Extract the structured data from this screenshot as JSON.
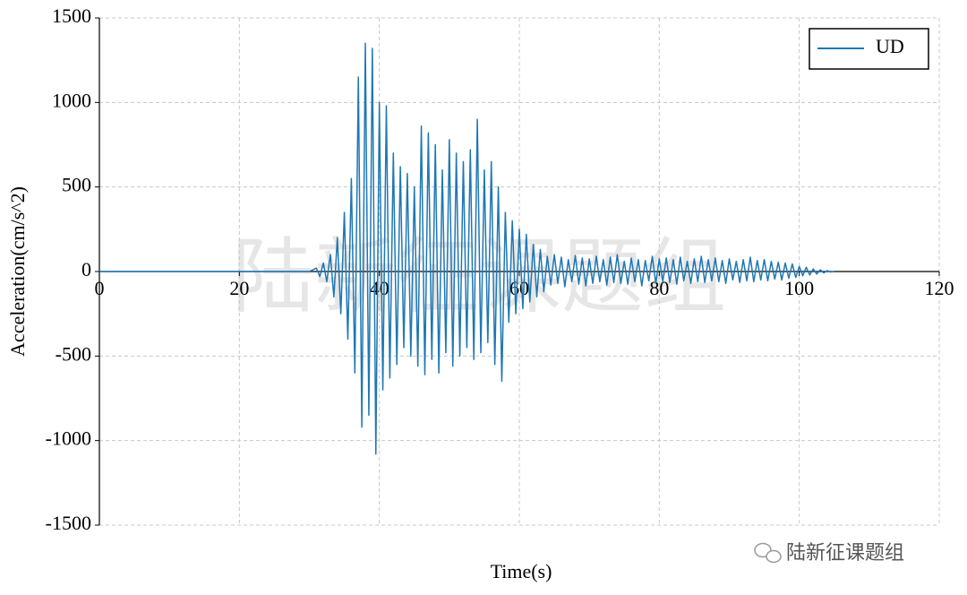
{
  "chart_data": {
    "type": "line",
    "xlabel": "Time(s)",
    "ylabel": "Acceleration(cm/s^2)",
    "x": [
      0,
      30,
      31,
      31.5,
      32,
      32.5,
      33,
      33.5,
      34,
      34.5,
      35,
      35.5,
      36,
      36.5,
      37,
      37.5,
      38,
      38.5,
      39,
      39.5,
      40,
      40.5,
      41,
      41.5,
      42,
      42.5,
      43,
      43.5,
      44,
      44.5,
      45,
      45.5,
      46,
      46.5,
      47,
      47.5,
      48,
      48.5,
      49,
      49.5,
      50,
      50.5,
      51,
      51.5,
      52,
      52.5,
      53,
      53.5,
      54,
      54.5,
      55,
      55.5,
      56,
      56.5,
      57,
      57.5,
      58,
      58.5,
      59,
      59.5,
      60,
      60.5,
      61,
      61.5,
      62,
      62.5,
      63,
      63.5,
      64,
      64.5,
      65,
      65.5,
      66,
      66.5,
      67,
      67.5,
      68,
      68.5,
      69,
      69.5,
      70,
      70.5,
      71,
      71.5,
      72,
      72.5,
      73,
      73.5,
      74,
      74.5,
      75,
      75.5,
      76,
      76.5,
      77,
      77.5,
      78,
      78.5,
      79,
      79.5,
      80,
      80.5,
      81,
      81.5,
      82,
      82.5,
      83,
      83.5,
      84,
      84.5,
      85,
      85.5,
      86,
      86.5,
      87,
      87.5,
      88,
      88.5,
      89,
      89.5,
      90,
      90.5,
      91,
      91.5,
      92,
      92.5,
      93,
      93.5,
      94,
      94.5,
      95,
      95.5,
      96,
      96.5,
      97,
      97.5,
      98,
      98.5,
      99,
      99.5,
      100,
      100.5,
      101,
      101.5,
      102,
      102.5,
      103,
      103.5,
      104,
      104.5,
      105
    ],
    "series": [
      {
        "name": "UD",
        "color": "#1f77b4",
        "values": [
          0,
          0,
          20,
          -30,
          50,
          -60,
          100,
          -150,
          200,
          -250,
          350,
          -400,
          550,
          -600,
          1150,
          -920,
          1350,
          -850,
          1320,
          -1080,
          1000,
          -700,
          980,
          -630,
          700,
          -550,
          620,
          -450,
          580,
          -500,
          500,
          -560,
          860,
          -610,
          820,
          -520,
          750,
          -600,
          600,
          -480,
          780,
          -560,
          700,
          -500,
          650,
          -450,
          720,
          -520,
          900,
          -480,
          600,
          -420,
          650,
          -550,
          500,
          -650,
          350,
          -300,
          300,
          -250,
          250,
          -220,
          220,
          -180,
          160,
          -150,
          130,
          -120,
          90,
          -80,
          100,
          -70,
          85,
          -90,
          70,
          -60,
          95,
          -75,
          80,
          -85,
          75,
          -70,
          90,
          -60,
          70,
          -80,
          85,
          -65,
          100,
          -70,
          60,
          -75,
          80,
          -60,
          70,
          -85,
          65,
          -55,
          90,
          -70,
          75,
          -60,
          80,
          -65,
          70,
          -75,
          85,
          -55,
          60,
          -70,
          75,
          -60,
          90,
          -65,
          70,
          -55,
          80,
          -60,
          65,
          -70,
          75,
          -50,
          60,
          -65,
          70,
          -55,
          85,
          -60,
          65,
          -50,
          70,
          -55,
          60,
          -45,
          55,
          -50,
          50,
          -40,
          45,
          -35,
          30,
          -25,
          25,
          -20,
          15,
          -15,
          10,
          -8,
          5,
          -3,
          0
        ]
      }
    ],
    "xlim": [
      0,
      120
    ],
    "xticks": [
      0,
      20,
      40,
      60,
      80,
      100,
      120
    ],
    "ylim": [
      -1500,
      1500
    ],
    "yticks": [
      -1500,
      -1000,
      -500,
      0,
      500,
      1000,
      1500
    ],
    "grid": true,
    "legend": "upper right",
    "watermark": "陆新征课题组",
    "source_label": "陆新征课题组"
  }
}
